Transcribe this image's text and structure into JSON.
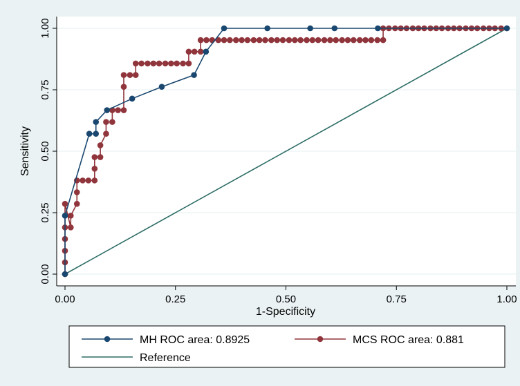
{
  "chart_data": {
    "type": "line",
    "xlabel": "1-Specificity",
    "ylabel": "Sensitivity",
    "xlim": [
      0,
      1
    ],
    "ylim": [
      0,
      1
    ],
    "xticks": [
      "0.00",
      "0.25",
      "0.50",
      "0.75",
      "1.00"
    ],
    "yticks": [
      "0.00",
      "0.25",
      "0.50",
      "0.75",
      "1.00"
    ],
    "grid": "horizontal",
    "legend_position": "bottom",
    "series": [
      {
        "name": "MH ROC area: 0.8925",
        "color": "#1a476f",
        "markers": true,
        "x": [
          0,
          0,
          0.055,
          0.07,
          0.07,
          0.095,
          0.152,
          0.219,
          0.292,
          0.319,
          0.36,
          0.458,
          0.555,
          0.61,
          0.708,
          1
        ],
        "y": [
          0,
          0.238,
          0.571,
          0.571,
          0.619,
          0.667,
          0.714,
          0.762,
          0.81,
          0.905,
          1,
          1,
          1,
          1,
          1,
          1
        ]
      },
      {
        "name": "MCS ROC area: 0.881",
        "color": "#90353b",
        "markers": true,
        "x": [
          0,
          0,
          0,
          0,
          0,
          0,
          0.013,
          0.013,
          0.027,
          0.027,
          0.027,
          0.04,
          0.053,
          0.067,
          0.067,
          0.067,
          0.08,
          0.08,
          0.093,
          0.093,
          0.107,
          0.107,
          0.12,
          0.133,
          0.133,
          0.133,
          0.147,
          0.16,
          0.16,
          0.173,
          0.187,
          0.2,
          0.213,
          0.227,
          0.24,
          0.253,
          0.267,
          0.28,
          0.28,
          0.293,
          0.307,
          0.307,
          0.32,
          0.333,
          0.347,
          0.36,
          0.373,
          0.387,
          0.4,
          0.413,
          0.427,
          0.44,
          0.453,
          0.467,
          0.48,
          0.493,
          0.507,
          0.52,
          0.533,
          0.547,
          0.56,
          0.573,
          0.587,
          0.6,
          0.613,
          0.627,
          0.64,
          0.653,
          0.667,
          0.68,
          0.693,
          0.707,
          0.72,
          0.72,
          0.733,
          0.747,
          0.76,
          0.773,
          0.787,
          0.8,
          0.813,
          0.827,
          0.84,
          0.853,
          0.867,
          0.88,
          0.893,
          0.907,
          0.92,
          0.933,
          0.947,
          0.96,
          0.973,
          0.987,
          1
        ],
        "y": [
          0,
          0.048,
          0.095,
          0.143,
          0.19,
          0.286,
          0.19,
          0.238,
          0.286,
          0.333,
          0.381,
          0.381,
          0.381,
          0.381,
          0.429,
          0.476,
          0.476,
          0.524,
          0.571,
          0.619,
          0.619,
          0.667,
          0.667,
          0.667,
          0.762,
          0.81,
          0.81,
          0.81,
          0.857,
          0.857,
          0.857,
          0.857,
          0.857,
          0.857,
          0.857,
          0.857,
          0.857,
          0.857,
          0.905,
          0.905,
          0.905,
          0.952,
          0.952,
          0.952,
          0.952,
          0.952,
          0.952,
          0.952,
          0.952,
          0.952,
          0.952,
          0.952,
          0.952,
          0.952,
          0.952,
          0.952,
          0.952,
          0.952,
          0.952,
          0.952,
          0.952,
          0.952,
          0.952,
          0.952,
          0.952,
          0.952,
          0.952,
          0.952,
          0.952,
          0.952,
          0.952,
          0.952,
          0.952,
          1,
          1,
          1,
          1,
          1,
          1,
          1,
          1,
          1,
          1,
          1,
          1,
          1,
          1,
          1,
          1,
          1,
          1,
          1,
          1,
          1,
          1
        ]
      },
      {
        "name": "Reference",
        "color": "#2d6d66",
        "markers": false,
        "x": [
          0,
          1
        ],
        "y": [
          0,
          1
        ]
      }
    ]
  }
}
